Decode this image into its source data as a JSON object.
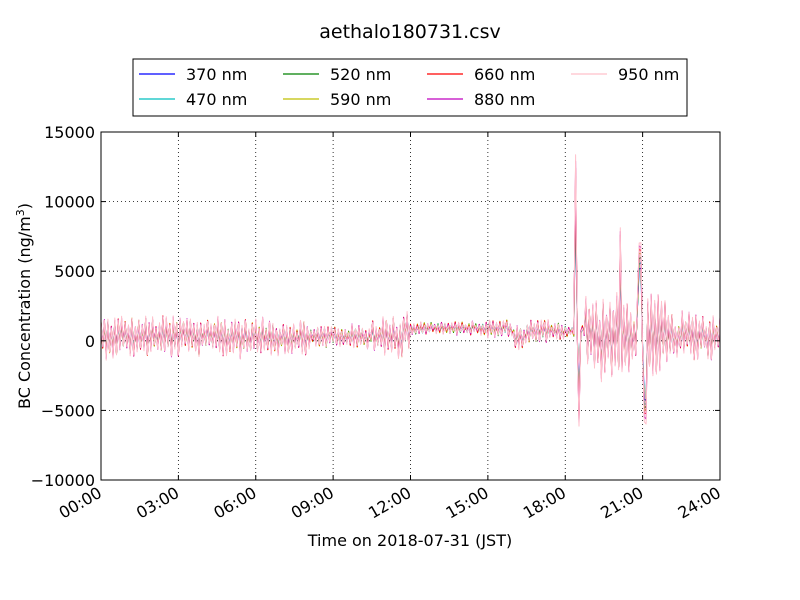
{
  "chart_data": {
    "type": "line",
    "title": "aethalo180731.csv",
    "xlabel": "Time on 2018-07-31 (JST)",
    "ylabel_main": "BC Concentration (ng/m",
    "ylabel_sup": "3",
    "ylabel_close": ")",
    "ylim": [
      -10000,
      15000
    ],
    "yticks": [
      {
        "value": -10000,
        "label": "−10000"
      },
      {
        "value": -5000,
        "label": "−5000"
      },
      {
        "value": 0,
        "label": "0"
      },
      {
        "value": 5000,
        "label": "5000"
      },
      {
        "value": 10000,
        "label": "10000"
      },
      {
        "value": 15000,
        "label": "15000"
      }
    ],
    "xlim": [
      "00:00",
      "24:00"
    ],
    "xticks": [
      "00:00",
      "03:00",
      "06:00",
      "09:00",
      "12:00",
      "15:00",
      "18:00",
      "21:00",
      "24:00"
    ],
    "grid": true,
    "legend_position": "top-center",
    "series": [
      {
        "name": "370 nm",
        "color": "#0000ff"
      },
      {
        "name": "470 nm",
        "color": "#00bfbf"
      },
      {
        "name": "520 nm",
        "color": "#008000"
      },
      {
        "name": "590 nm",
        "color": "#bfbf00"
      },
      {
        "name": "660 nm",
        "color": "#ff0000"
      },
      {
        "name": "880 nm",
        "color": "#bf00bf"
      },
      {
        "name": "950 nm",
        "color": "#ffc0cb"
      }
    ]
  }
}
